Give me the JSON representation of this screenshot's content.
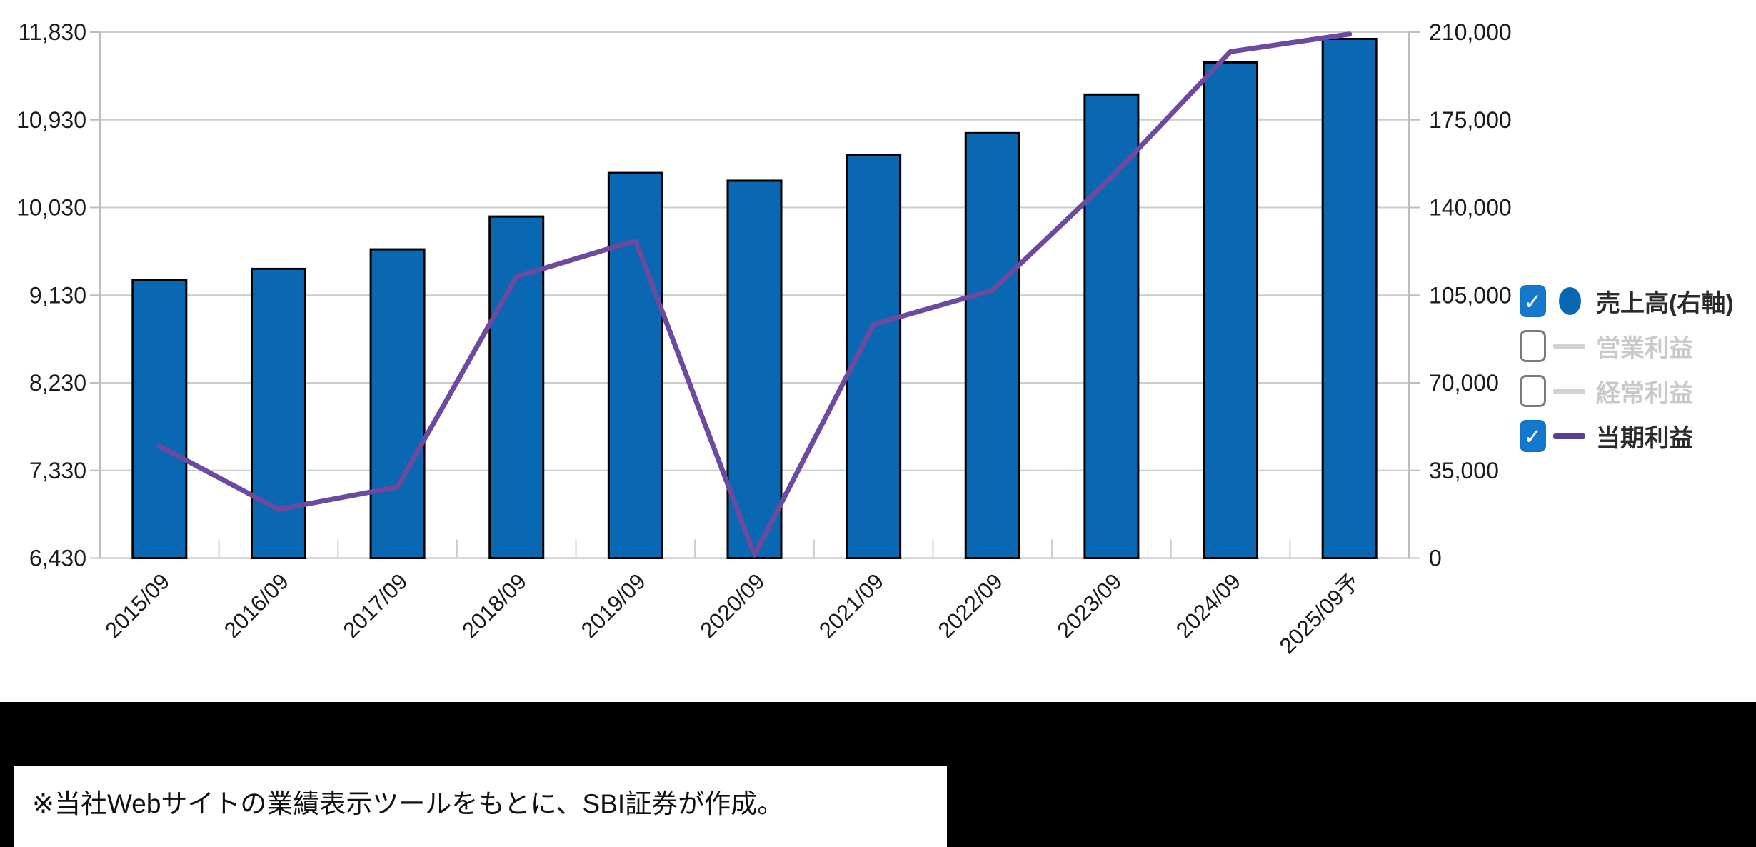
{
  "chart_data": {
    "type": "bar",
    "subtype": "bar-line-combo",
    "title": "",
    "categories": [
      "2015/09",
      "2016/09",
      "2017/09",
      "2018/09",
      "2019/09",
      "2020/09",
      "2021/09",
      "2022/09",
      "2023/09",
      "2024/09",
      "2025/09予"
    ],
    "series": [
      {
        "name": "売上高(右軸)",
        "type": "bar",
        "axis": "right",
        "visible": true,
        "color": "#0a67b2",
        "values": [
          111200,
          115500,
          123300,
          136400,
          153800,
          150700,
          160900,
          169700,
          185100,
          197900,
          207300
        ]
      },
      {
        "name": "営業利益",
        "type": "line",
        "axis": "left",
        "visible": false,
        "color": "#d2d2d2",
        "values": []
      },
      {
        "name": "経常利益",
        "type": "line",
        "axis": "left",
        "visible": false,
        "color": "#d2d2d2",
        "values": []
      },
      {
        "name": "当期利益",
        "type": "line",
        "axis": "left",
        "visible": true,
        "color": "#6b4aa0",
        "values": [
          7580,
          6930,
          7160,
          9320,
          9690,
          6460,
          8830,
          9180,
          10340,
          11630,
          11810
        ]
      }
    ],
    "left_axis": {
      "min": 6430,
      "max": 11830,
      "tick_labels": [
        "11,830",
        "10,930",
        "10,030",
        "9,130",
        "8,230",
        "7,330",
        "6,430"
      ]
    },
    "right_axis": {
      "min": 0,
      "max": 210000,
      "tick_labels": [
        "210,000",
        "175,000",
        "140,000",
        "105,000",
        "70,000",
        "35,000",
        "0"
      ]
    },
    "grid": true,
    "legend_position": "right",
    "x_labels_rotation_deg": -45
  },
  "legend": {
    "items": [
      {
        "label": "売上高(右軸)",
        "checked": true,
        "marker": "circle",
        "marker_color": "#0a67b2",
        "text_color": "#2b2b2b"
      },
      {
        "label": "営業利益",
        "checked": false,
        "marker": "dash",
        "marker_color": "#d2d2d2",
        "text_color": "#c9c9c9"
      },
      {
        "label": "経常利益",
        "checked": false,
        "marker": "dash",
        "marker_color": "#d2d2d2",
        "text_color": "#c9c9c9"
      },
      {
        "label": "当期利益",
        "checked": true,
        "marker": "dash",
        "marker_color": "#5b3c96",
        "text_color": "#2b2b2b"
      }
    ]
  },
  "note": {
    "text": "※当社Webサイトの業績表示ツールをもとに、SBI証券が作成。"
  },
  "colors": {
    "bar_fill": "#0a67b2",
    "bar_border": "#000000",
    "profit_line": "#6b4aa0",
    "gridline": "#cccccc",
    "axis_line": "#bdbdbd",
    "baseline": "#b3b3b3",
    "axis_text": "#1a1a1a",
    "checkbox_checked": "#1478cd",
    "legend_muted_text": "#c9c9c9",
    "legend_active_text": "#2b2b2b",
    "bottom_band": "#000000",
    "note_background": "#ffffff"
  }
}
